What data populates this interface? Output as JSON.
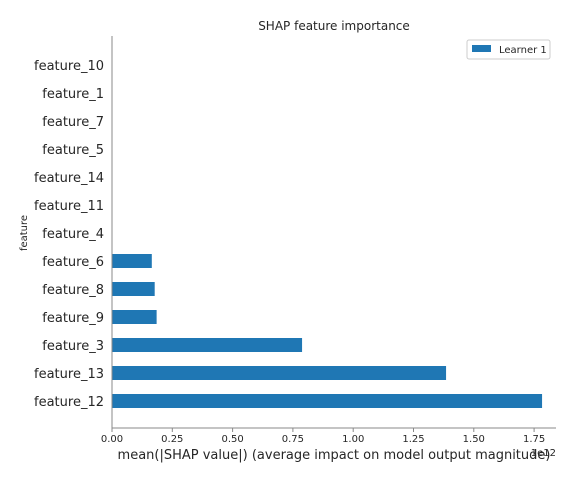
{
  "chart_data": {
    "type": "bar",
    "orientation": "horizontal",
    "title": "SHAP feature importance",
    "xlabel": "mean(|SHAP value|) (average impact on model output magnitude)",
    "ylabel": "feature",
    "x_scale_label": "1e12",
    "xlim": [
      0,
      1.87
    ],
    "xticks": [
      "0.00",
      "0.25",
      "0.50",
      "0.75",
      "1.00",
      "1.25",
      "1.50",
      "1.75"
    ],
    "legend_position": "top-right",
    "categories": [
      "feature_10",
      "feature_1",
      "feature_7",
      "feature_5",
      "feature_14",
      "feature_11",
      "feature_4",
      "feature_6",
      "feature_8",
      "feature_9",
      "feature_3",
      "feature_13",
      "feature_12"
    ],
    "series": [
      {
        "name": "Learner 1",
        "color": "#1f77b4",
        "values": [
          0,
          0,
          0,
          0,
          0,
          0,
          0,
          0.165,
          0.177,
          0.185,
          0.788,
          1.385,
          1.783
        ]
      }
    ]
  }
}
